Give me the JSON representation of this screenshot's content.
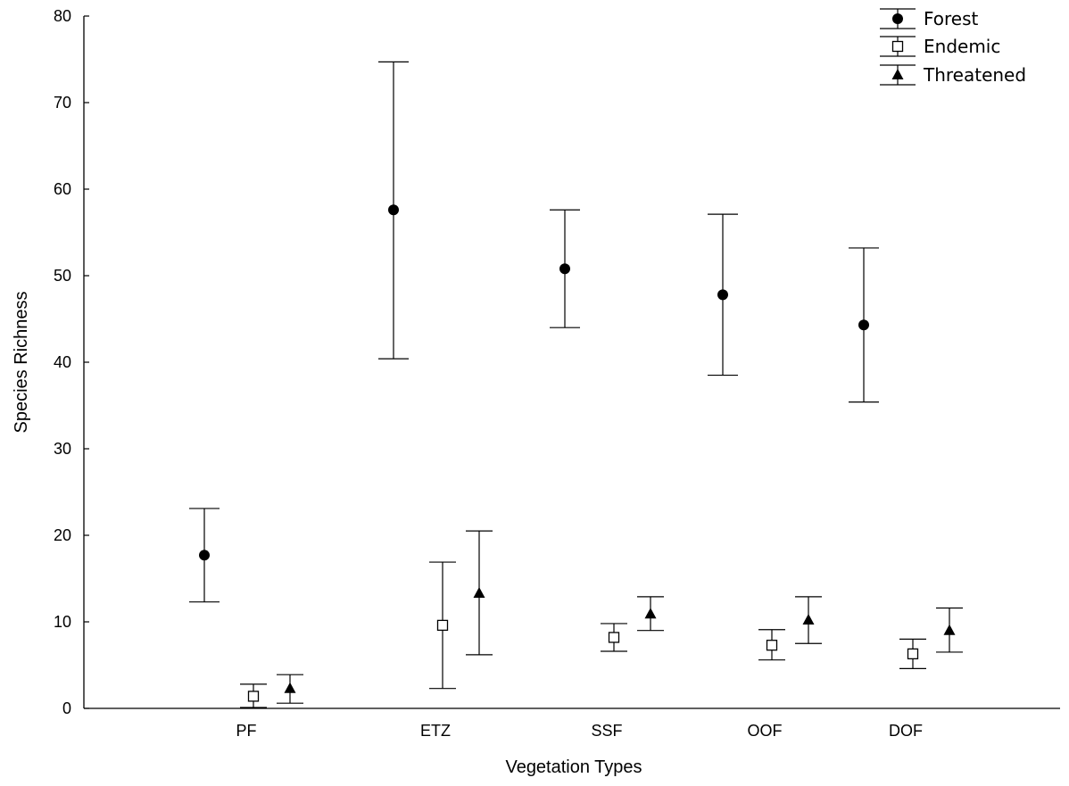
{
  "chart_data": {
    "type": "scatter",
    "subtype": "point-with-error-bars",
    "title": "",
    "xlabel": "Vegetation Types",
    "ylabel": "Species Richness",
    "categories": [
      "PF",
      "ETZ",
      "SSF",
      "OOF",
      "DOF"
    ],
    "ylim": [
      0,
      80
    ],
    "yticks": [
      0,
      10,
      20,
      30,
      40,
      50,
      60,
      70,
      80
    ],
    "grid": false,
    "legend_position": "top-right",
    "series": [
      {
        "name": "Forest",
        "marker": "filled-circle",
        "color": "#000000",
        "values": [
          17.7,
          57.6,
          50.8,
          47.8,
          44.3
        ],
        "lower": [
          12.3,
          40.4,
          44.0,
          38.5,
          35.4
        ],
        "upper": [
          23.1,
          74.7,
          57.6,
          57.1,
          53.2
        ]
      },
      {
        "name": "Endemic",
        "marker": "open-square",
        "color": "#000000",
        "values": [
          1.4,
          9.6,
          8.2,
          7.3,
          6.3
        ],
        "lower": [
          0.1,
          2.3,
          6.6,
          5.6,
          4.6
        ],
        "upper": [
          2.8,
          16.9,
          9.8,
          9.1,
          8.0
        ]
      },
      {
        "name": "Threatened",
        "marker": "filled-triangle",
        "color": "#000000",
        "values": [
          2.3,
          13.3,
          10.9,
          10.2,
          9.0
        ],
        "lower": [
          0.6,
          6.2,
          9.0,
          7.5,
          6.5
        ],
        "upper": [
          3.9,
          20.5,
          12.9,
          12.9,
          11.6
        ]
      }
    ]
  }
}
